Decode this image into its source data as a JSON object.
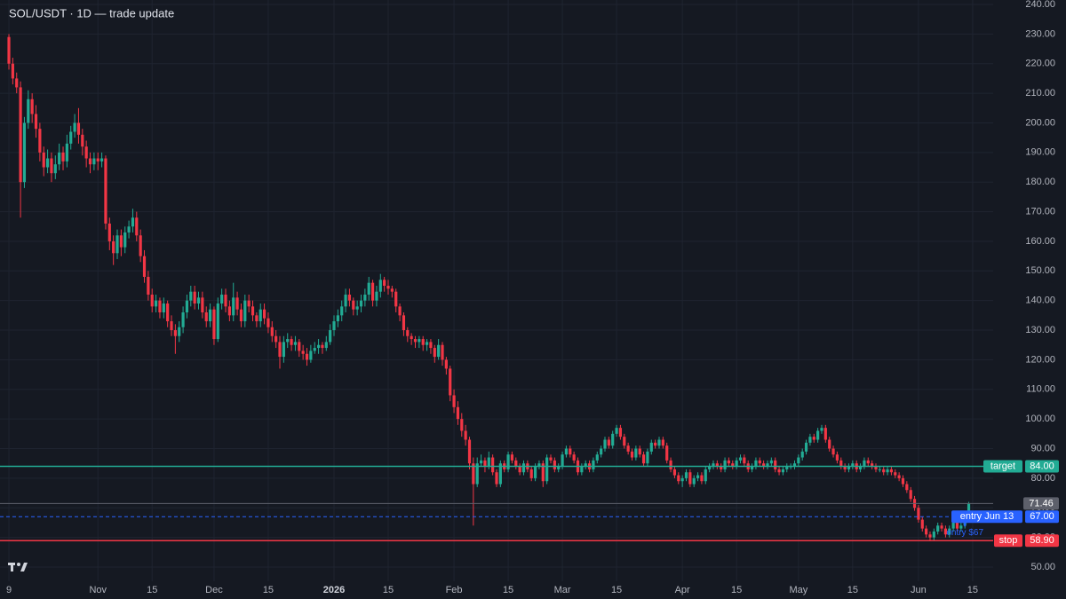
{
  "chart_data": {
    "type": "candlestick",
    "title": "SOL/USDT · 1D — trade update",
    "up_color": "#22ab94",
    "down_color": "#f23645",
    "grid": true,
    "ylim": [
      45.2,
      241.5
    ],
    "yticks": [
      {
        "value": 50,
        "label": "50.00"
      },
      {
        "value": 60,
        "label": "60.00"
      },
      {
        "value": 70,
        "label": "70.00"
      },
      {
        "value": 80,
        "label": "80.00"
      },
      {
        "value": 90,
        "label": "90.00"
      },
      {
        "value": 100,
        "label": "100.00"
      },
      {
        "value": 110,
        "label": "110.00"
      },
      {
        "value": 120,
        "label": "120.00"
      },
      {
        "value": 130,
        "label": "130.00"
      },
      {
        "value": 140,
        "label": "140.00"
      },
      {
        "value": 150,
        "label": "150.00"
      },
      {
        "value": 160,
        "label": "160.00"
      },
      {
        "value": 170,
        "label": "170.00"
      },
      {
        "value": 180,
        "label": "180.00"
      },
      {
        "value": 190,
        "label": "190.00"
      },
      {
        "value": 200,
        "label": "200.00"
      },
      {
        "value": 210,
        "label": "210.00"
      },
      {
        "value": 220,
        "label": "220.00"
      },
      {
        "value": 230,
        "label": "230.00"
      },
      {
        "value": 240,
        "label": "240.00"
      }
    ],
    "xlim": [
      -2.3,
      254.3
    ],
    "xticks": [
      {
        "value": 0,
        "label": "9"
      },
      {
        "value": 23,
        "label": "Nov"
      },
      {
        "value": 37,
        "label": "15"
      },
      {
        "value": 53,
        "label": "Dec"
      },
      {
        "value": 67,
        "label": "15"
      },
      {
        "value": 84,
        "label": "2026"
      },
      {
        "value": 98,
        "label": "15"
      },
      {
        "value": 115,
        "label": "Feb"
      },
      {
        "value": 129,
        "label": "15"
      },
      {
        "value": 143,
        "label": "Mar"
      },
      {
        "value": 157,
        "label": "15"
      },
      {
        "value": 174,
        "label": "Apr"
      },
      {
        "value": 188,
        "label": "15"
      },
      {
        "value": 204,
        "label": "May"
      },
      {
        "value": 218,
        "label": "15"
      },
      {
        "value": 235,
        "label": "Jun"
      },
      {
        "value": 249,
        "label": "15"
      }
    ],
    "levels": [
      {
        "label": "target",
        "value": 84,
        "value_label": "84.00",
        "color": "#22ab94",
        "style": "solid"
      },
      {
        "label": "entry Jun 13",
        "value": 67,
        "value_label": "67.00",
        "color": "#2962ff",
        "style": "dashed"
      },
      {
        "label": "stop",
        "value": 58.9,
        "value_label": "58.90",
        "color": "#f23645",
        "style": "solid"
      }
    ],
    "last_price": {
      "value": 71.46,
      "label": "71.46"
    },
    "annotation": "entry $67",
    "ohlc": [
      [
        229,
        230,
        218,
        220
      ],
      [
        220,
        222,
        213,
        215
      ],
      [
        215,
        217,
        210,
        212
      ],
      [
        212,
        214,
        168,
        180
      ],
      [
        180,
        202,
        178,
        200
      ],
      [
        200,
        211,
        198,
        208
      ],
      [
        208,
        210,
        200,
        203
      ],
      [
        203,
        206,
        195,
        198
      ],
      [
        198,
        200,
        187,
        190
      ],
      [
        190,
        192,
        182,
        185
      ],
      [
        185,
        191,
        183,
        188
      ],
      [
        188,
        190,
        180,
        183
      ],
      [
        183,
        189,
        181,
        186
      ],
      [
        186,
        193,
        184,
        190
      ],
      [
        190,
        192,
        184,
        187
      ],
      [
        187,
        196,
        185,
        193
      ],
      [
        193,
        199,
        191,
        197
      ],
      [
        197,
        203,
        195,
        200
      ],
      [
        200,
        205,
        193,
        196
      ],
      [
        196,
        198,
        189,
        192
      ],
      [
        192,
        194,
        185,
        188
      ],
      [
        188,
        190,
        183,
        186
      ],
      [
        186,
        190,
        184,
        188
      ],
      [
        188,
        190,
        184,
        187
      ],
      [
        187,
        190,
        185,
        188
      ],
      [
        188,
        189,
        164,
        166
      ],
      [
        166,
        168,
        157,
        160
      ],
      [
        160,
        162,
        152,
        156
      ],
      [
        156,
        164,
        154,
        162
      ],
      [
        162,
        164,
        155,
        158
      ],
      [
        158,
        165,
        156,
        163
      ],
      [
        163,
        167,
        161,
        165
      ],
      [
        165,
        171,
        163,
        168
      ],
      [
        168,
        170,
        160,
        162
      ],
      [
        162,
        164,
        153,
        155
      ],
      [
        155,
        157,
        146,
        148
      ],
      [
        148,
        150,
        140,
        142
      ],
      [
        142,
        144,
        136,
        138
      ],
      [
        138,
        142,
        136,
        140
      ],
      [
        140,
        141,
        134,
        136
      ],
      [
        136,
        141,
        134,
        139
      ],
      [
        139,
        140,
        131,
        133
      ],
      [
        133,
        135,
        128,
        130
      ],
      [
        130,
        132,
        122,
        128
      ],
      [
        128,
        133,
        126,
        131
      ],
      [
        131,
        138,
        129,
        136
      ],
      [
        136,
        142,
        134,
        140
      ],
      [
        140,
        145,
        138,
        143
      ],
      [
        143,
        145,
        137,
        139
      ],
      [
        139,
        143,
        137,
        141
      ],
      [
        141,
        143,
        134,
        136
      ],
      [
        136,
        138,
        131,
        133
      ],
      [
        133,
        139,
        131,
        137
      ],
      [
        137,
        138,
        125,
        127
      ],
      [
        127,
        141,
        126,
        139
      ],
      [
        139,
        144,
        137,
        142
      ],
      [
        142,
        144,
        136,
        138
      ],
      [
        138,
        140,
        133,
        135
      ],
      [
        135,
        146,
        133,
        141
      ],
      [
        141,
        143,
        135,
        137
      ],
      [
        137,
        139,
        131,
        133
      ],
      [
        133,
        142,
        131,
        140
      ],
      [
        140,
        142,
        136,
        138
      ],
      [
        138,
        140,
        133,
        135
      ],
      [
        135,
        136,
        131,
        133
      ],
      [
        133,
        139,
        131,
        137
      ],
      [
        137,
        139,
        132,
        134
      ],
      [
        134,
        136,
        129,
        131
      ],
      [
        131,
        133,
        126,
        128
      ],
      [
        128,
        130,
        124,
        126
      ],
      [
        126,
        128,
        117,
        121
      ],
      [
        121,
        128,
        119,
        126
      ],
      [
        126,
        129,
        124,
        127
      ],
      [
        127,
        128,
        123,
        125
      ],
      [
        125,
        128,
        123,
        126
      ],
      [
        126,
        127,
        121,
        123
      ],
      [
        123,
        125,
        120,
        122
      ],
      [
        122,
        124,
        118,
        120
      ],
      [
        120,
        125,
        119,
        123
      ],
      [
        123,
        126,
        122,
        124
      ],
      [
        124,
        127,
        122,
        125
      ],
      [
        125,
        126,
        122,
        124
      ],
      [
        124,
        128,
        123,
        126
      ],
      [
        126,
        132,
        125,
        130
      ],
      [
        130,
        135,
        128,
        133
      ],
      [
        133,
        137,
        131,
        135
      ],
      [
        135,
        140,
        133,
        138
      ],
      [
        138,
        144,
        136,
        142
      ],
      [
        142,
        144,
        138,
        140
      ],
      [
        140,
        141,
        135,
        137
      ],
      [
        137,
        140,
        135,
        138
      ],
      [
        138,
        142,
        136,
        140
      ],
      [
        140,
        144,
        138,
        142
      ],
      [
        142,
        148,
        140,
        146
      ],
      [
        146,
        147,
        138,
        140
      ],
      [
        140,
        145,
        138,
        143
      ],
      [
        143,
        149,
        141,
        147
      ],
      [
        147,
        148,
        143,
        145
      ],
      [
        145,
        147,
        142,
        144
      ],
      [
        144,
        145,
        141,
        143
      ],
      [
        143,
        144,
        136,
        138
      ],
      [
        138,
        139,
        133,
        135
      ],
      [
        135,
        136,
        128,
        130
      ],
      [
        130,
        131,
        126,
        128
      ],
      [
        128,
        129,
        125,
        127
      ],
      [
        127,
        128,
        124,
        126
      ],
      [
        126,
        128,
        124,
        127
      ],
      [
        127,
        128,
        123,
        125
      ],
      [
        125,
        127,
        123,
        126
      ],
      [
        126,
        127,
        122,
        124
      ],
      [
        124,
        125,
        119,
        121
      ],
      [
        121,
        127,
        120,
        125
      ],
      [
        125,
        126,
        118,
        120
      ],
      [
        120,
        121,
        115,
        117
      ],
      [
        117,
        118,
        106,
        108
      ],
      [
        108,
        110,
        102,
        104
      ],
      [
        104,
        106,
        98,
        100
      ],
      [
        100,
        102,
        94,
        96
      ],
      [
        96,
        98,
        91,
        93
      ],
      [
        93,
        94,
        83,
        85
      ],
      [
        85,
        87,
        64,
        78
      ],
      [
        78,
        87,
        77,
        85
      ],
      [
        85,
        88,
        84,
        86
      ],
      [
        86,
        87,
        82,
        84
      ],
      [
        84,
        89,
        83,
        87
      ],
      [
        87,
        88,
        81,
        82
      ],
      [
        82,
        83,
        77,
        78
      ],
      [
        78,
        86,
        77,
        85
      ],
      [
        85,
        86,
        82,
        83
      ],
      [
        83,
        89,
        82,
        88
      ],
      [
        88,
        89,
        85,
        86
      ],
      [
        86,
        87,
        83,
        84
      ],
      [
        84,
        85,
        81,
        82
      ],
      [
        82,
        86,
        81,
        85
      ],
      [
        85,
        86,
        82,
        83
      ],
      [
        83,
        84,
        79,
        80
      ],
      [
        80,
        85,
        79,
        84
      ],
      [
        84,
        86,
        83,
        85
      ],
      [
        85,
        86,
        77,
        79
      ],
      [
        79,
        88,
        78,
        87
      ],
      [
        87,
        88,
        85,
        86
      ],
      [
        86,
        87,
        82,
        83
      ],
      [
        83,
        85,
        82,
        84
      ],
      [
        84,
        89,
        83,
        88
      ],
      [
        88,
        91,
        87,
        90
      ],
      [
        90,
        91,
        87,
        88
      ],
      [
        88,
        89,
        85,
        86
      ],
      [
        86,
        87,
        81,
        82
      ],
      [
        82,
        85,
        81,
        84
      ],
      [
        84,
        86,
        83,
        85
      ],
      [
        85,
        86,
        82,
        83
      ],
      [
        83,
        87,
        82,
        86
      ],
      [
        86,
        89,
        85,
        88
      ],
      [
        88,
        91,
        87,
        90
      ],
      [
        90,
        94,
        89,
        93
      ],
      [
        93,
        94,
        90,
        91
      ],
      [
        91,
        96,
        90,
        95
      ],
      [
        95,
        98,
        94,
        97
      ],
      [
        97,
        98,
        93,
        94
      ],
      [
        94,
        95,
        90,
        91
      ],
      [
        91,
        92,
        88,
        89
      ],
      [
        89,
        90,
        86,
        87
      ],
      [
        87,
        91,
        86,
        90
      ],
      [
        90,
        91,
        87,
        88
      ],
      [
        88,
        89,
        84,
        85
      ],
      [
        85,
        90,
        84,
        89
      ],
      [
        89,
        93,
        88,
        92
      ],
      [
        92,
        93,
        90,
        91
      ],
      [
        91,
        94,
        90,
        93
      ],
      [
        93,
        94,
        90,
        91
      ],
      [
        91,
        92,
        85,
        86
      ],
      [
        86,
        87,
        82,
        83
      ],
      [
        83,
        84,
        80,
        81
      ],
      [
        81,
        82,
        78,
        79
      ],
      [
        79,
        81,
        77,
        80
      ],
      [
        80,
        83,
        79,
        82
      ],
      [
        82,
        83,
        77,
        78
      ],
      [
        78,
        81,
        77,
        80
      ],
      [
        80,
        82,
        79,
        81
      ],
      [
        81,
        82,
        78,
        79
      ],
      [
        79,
        84,
        78,
        83
      ],
      [
        83,
        85,
        82,
        84
      ],
      [
        84,
        86,
        83,
        85
      ],
      [
        85,
        86,
        83,
        84
      ],
      [
        84,
        85,
        82,
        83
      ],
      [
        83,
        87,
        82,
        86
      ],
      [
        86,
        87,
        84,
        85
      ],
      [
        85,
        86,
        83,
        84
      ],
      [
        84,
        87,
        83,
        86
      ],
      [
        86,
        88,
        85,
        87
      ],
      [
        87,
        88,
        84,
        85
      ],
      [
        85,
        86,
        82,
        83
      ],
      [
        83,
        85,
        82,
        84
      ],
      [
        84,
        87,
        83,
        86
      ],
      [
        86,
        87,
        84,
        85
      ],
      [
        85,
        86,
        83,
        84
      ],
      [
        84,
        86,
        83,
        85
      ],
      [
        85,
        87,
        84,
        86
      ],
      [
        86,
        87,
        82,
        83
      ],
      [
        83,
        84,
        81,
        82
      ],
      [
        82,
        84,
        81,
        83
      ],
      [
        83,
        85,
        82,
        84
      ],
      [
        84,
        85,
        83,
        84
      ],
      [
        84,
        86,
        83,
        85
      ],
      [
        85,
        88,
        84,
        87
      ],
      [
        87,
        90,
        86,
        89
      ],
      [
        89,
        93,
        88,
        92
      ],
      [
        92,
        95,
        91,
        94
      ],
      [
        94,
        95,
        92,
        93
      ],
      [
        93,
        97,
        92,
        96
      ],
      [
        96,
        98,
        95,
        97
      ],
      [
        97,
        98,
        92,
        93
      ],
      [
        93,
        94,
        89,
        90
      ],
      [
        90,
        91,
        87,
        88
      ],
      [
        88,
        89,
        85,
        86
      ],
      [
        86,
        87,
        83,
        84
      ],
      [
        84,
        85,
        82,
        83
      ],
      [
        83,
        85,
        82,
        84
      ],
      [
        84,
        86,
        83,
        85
      ],
      [
        85,
        86,
        82,
        83
      ],
      [
        83,
        85,
        82,
        84
      ],
      [
        84,
        87,
        83,
        86
      ],
      [
        86,
        87,
        84,
        85
      ],
      [
        85,
        86,
        83,
        84
      ],
      [
        84,
        85,
        82,
        83
      ],
      [
        83,
        84,
        82,
        83
      ],
      [
        83,
        84,
        81,
        82
      ],
      [
        82,
        84,
        81,
        83
      ],
      [
        83,
        84,
        81,
        82
      ],
      [
        82,
        83,
        80,
        81
      ],
      [
        81,
        82,
        79,
        80
      ],
      [
        80,
        81,
        77,
        78
      ],
      [
        78,
        79,
        75,
        76
      ],
      [
        76,
        77,
        72,
        73
      ],
      [
        73,
        74,
        69,
        70
      ],
      [
        70,
        71,
        65,
        66
      ],
      [
        66,
        67,
        62,
        63
      ],
      [
        63,
        64,
        60,
        61
      ],
      [
        61,
        62,
        59,
        60
      ],
      [
        60,
        63,
        59,
        62
      ],
      [
        62,
        65,
        61,
        64
      ],
      [
        64,
        65,
        62,
        63
      ],
      [
        63,
        64,
        60,
        61
      ],
      [
        61,
        64,
        60,
        63
      ],
      [
        63,
        66,
        62,
        65
      ],
      [
        65,
        66,
        62,
        63
      ],
      [
        63,
        65,
        62,
        64
      ],
      [
        64,
        69,
        63,
        68
      ],
      [
        68,
        72,
        67,
        71.46
      ]
    ]
  }
}
